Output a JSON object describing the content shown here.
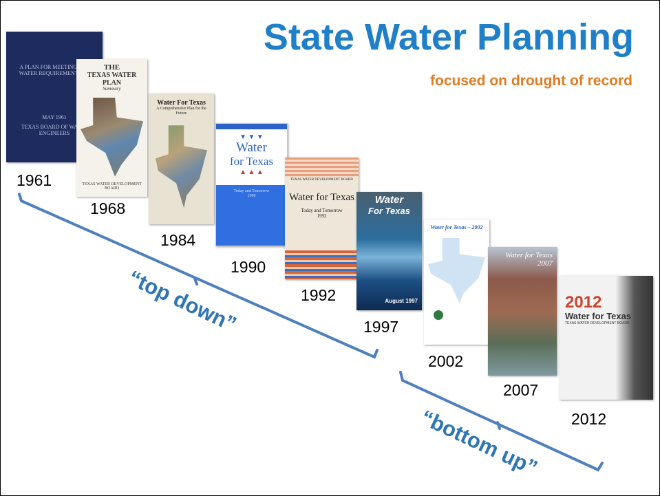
{
  "title": "State Water Planning",
  "subtitle": "focused on drought of record",
  "documents": [
    {
      "year": "1961",
      "cover_text": [
        "A PLAN FOR MEETING THE WATER REQUIREMENTS OF",
        "MAY 1961",
        "TEXAS BOARD OF WATER ENGINEERS"
      ]
    },
    {
      "year": "1968",
      "cover_text": [
        "THE",
        "TEXAS WATER PLAN",
        "Summary",
        "TEXAS WATER DEVELOPMENT BOARD"
      ]
    },
    {
      "year": "1984",
      "cover_text": [
        "Water For Texas",
        "A Comprehensive Plan for the Future"
      ]
    },
    {
      "year": "1990",
      "cover_text": [
        "Water",
        "for Texas",
        "Today and Tomorrow",
        "1990"
      ]
    },
    {
      "year": "1992",
      "cover_text": [
        "TEXAS WATER DEVELOPMENT BOARD",
        "Water for Texas",
        "Today and Tomorrow",
        "1992"
      ]
    },
    {
      "year": "1997",
      "cover_text": [
        "Water",
        "For Texas",
        "August 1997"
      ]
    },
    {
      "year": "2002",
      "cover_text": [
        "Water for Texas – 2002"
      ]
    },
    {
      "year": "2007",
      "cover_text": [
        "Water for Texas",
        "2007"
      ]
    },
    {
      "year": "2012",
      "cover_text": [
        "2012",
        "Water for Texas",
        "TEXAS WATER DEVELOPMENT BOARD"
      ]
    }
  ],
  "brackets": [
    {
      "label": "“top down”"
    },
    {
      "label": "“bottom up”"
    }
  ]
}
